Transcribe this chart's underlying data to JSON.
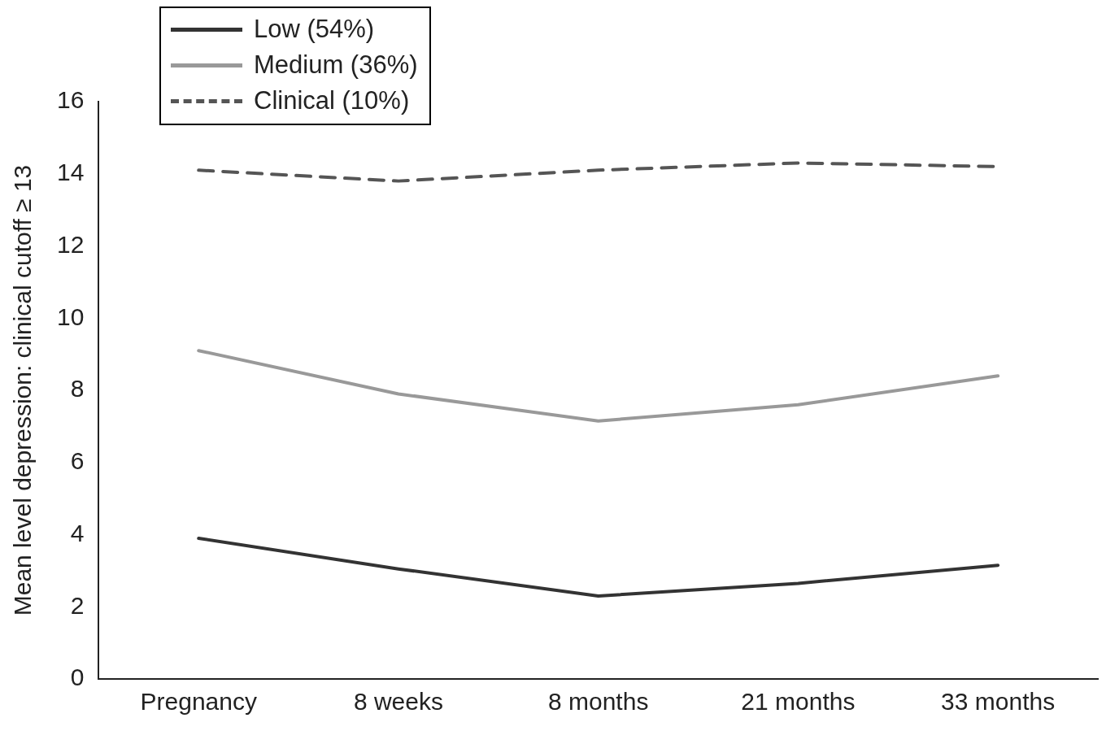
{
  "chart_data": {
    "type": "line",
    "ylabel": "Mean level depression: clinical cutoff ≥ 13",
    "categories": [
      "Pregnancy",
      "8 weeks",
      "8 months",
      "21 months",
      "33 months"
    ],
    "series": [
      {
        "name": "Low (54%)",
        "color": "#333333",
        "values": [
          3.9,
          3.05,
          2.3,
          2.65,
          3.15
        ]
      },
      {
        "name": "Medium (36%)",
        "color": "#999999",
        "values": [
          9.1,
          7.9,
          7.15,
          7.6,
          8.4
        ]
      },
      {
        "name": "Clinical (10%)",
        "color": "#555555",
        "line_style": "dashed",
        "values": [
          14.1,
          13.8,
          14.1,
          14.3,
          14.2
        ]
      }
    ],
    "ylim": [
      0,
      16
    ],
    "yticks": [
      0,
      2,
      4,
      6,
      8,
      10,
      12,
      14,
      16
    ],
    "grid": false,
    "legend": "top left",
    "marker": "none"
  }
}
